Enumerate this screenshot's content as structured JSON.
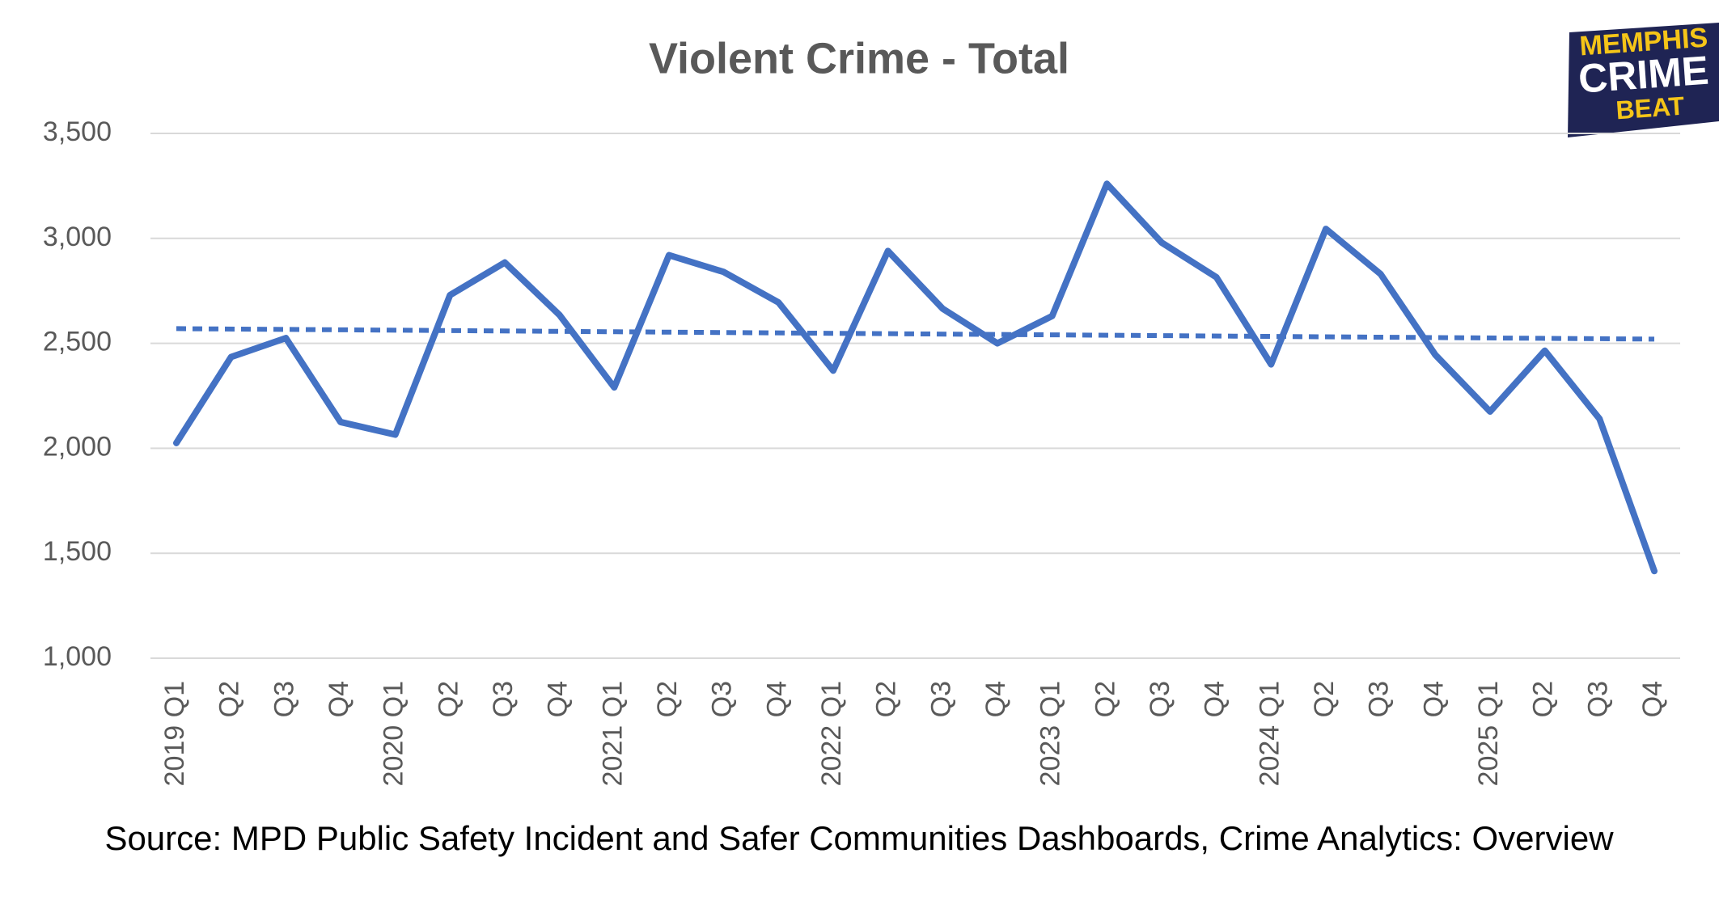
{
  "chart_data": {
    "type": "line",
    "title": "Violent Crime - Total",
    "categories": [
      "2019 Q1",
      "Q2",
      "Q3",
      "Q4",
      "2020 Q1",
      "Q2",
      "Q3",
      "Q4",
      "2021 Q1",
      "Q2",
      "Q3",
      "Q4",
      "2022 Q1",
      "Q2",
      "Q3",
      "Q4",
      "2023 Q1",
      "Q2",
      "Q3",
      "Q4",
      "2024 Q1",
      "Q2",
      "Q3",
      "Q4",
      "2025 Q1",
      "Q2",
      "Q3",
      "Q4"
    ],
    "series": [
      {
        "color": "#4472c4",
        "values": [
          2025,
          2435,
          2525,
          2125,
          2065,
          2730,
          2885,
          2635,
          2290,
          2920,
          2840,
          2695,
          2370,
          2940,
          2665,
          2500,
          2630,
          3260,
          2980,
          2815,
          2400,
          3045,
          2830,
          2445,
          2175,
          2465,
          2140,
          1415
        ]
      }
    ],
    "trendline": {
      "color": "#4472c4",
      "dashed": true,
      "values": [
        2570,
        2520
      ]
    },
    "ylim": [
      1000,
      3500
    ],
    "yticks": [
      {
        "value": 1000,
        "label": "1,000"
      },
      {
        "value": 1500,
        "label": "1,500"
      },
      {
        "value": 2000,
        "label": "2,000"
      },
      {
        "value": 2500,
        "label": "2,500"
      },
      {
        "value": 3000,
        "label": "3,000"
      },
      {
        "value": 3500,
        "label": "3,500"
      }
    ],
    "grid": true,
    "source": "Source: MPD Public Safety Incident and Safer Communities Dashboards, Crime Analytics: Overview"
  },
  "logo": {
    "lines": [
      "MEMPHIS",
      "CRIME",
      "BEAT"
    ]
  }
}
